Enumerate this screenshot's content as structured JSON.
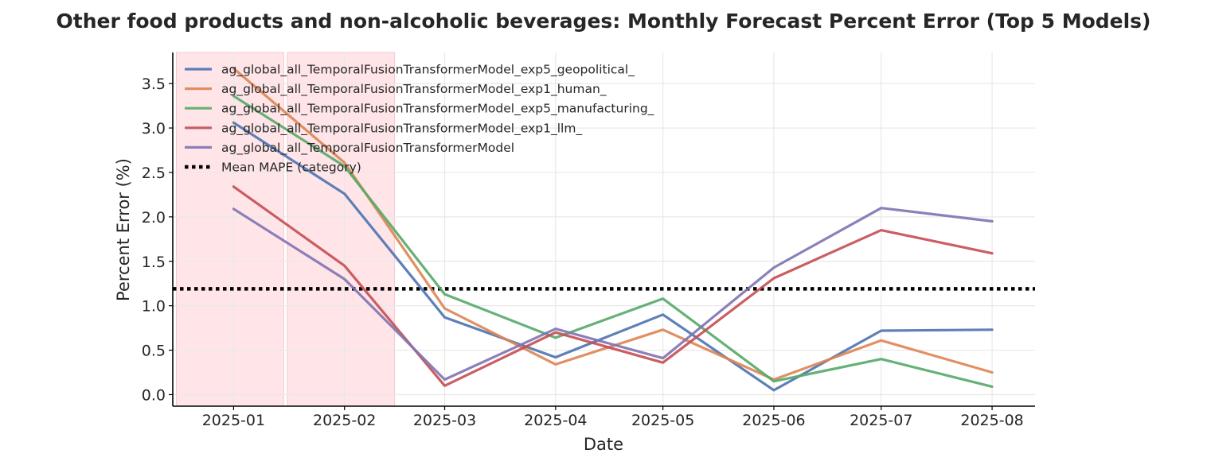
{
  "chart_data": {
    "type": "line",
    "title": "Other food products and non-alcoholic beverages: Monthly Forecast Percent Error (Top 5 Models)",
    "xlabel": "Date",
    "ylabel": "Percent Error (%)",
    "x": [
      "2025-01",
      "2025-02",
      "2025-03",
      "2025-04",
      "2025-05",
      "2025-06",
      "2025-07",
      "2025-08"
    ],
    "xlim": [
      "2024-12-15",
      "2025-08-13"
    ],
    "ylim": [
      -0.13,
      3.85
    ],
    "yticks": [
      0.0,
      0.5,
      1.0,
      1.5,
      2.0,
      2.5,
      3.0,
      3.5
    ],
    "ytick_labels": [
      "0.0",
      "0.5",
      "1.0",
      "1.5",
      "2.0",
      "2.5",
      "3.0",
      "3.5"
    ],
    "grid": true,
    "legend_position": "upper-left",
    "shaded_regions": [
      {
        "start": "2024-12-16",
        "end": "2025-01-15",
        "color": "#ffe5e8"
      },
      {
        "start": "2025-01-16",
        "end": "2025-02-15",
        "color": "#ffe5e8"
      }
    ],
    "series": [
      {
        "name": "ag_global_all_TemporalFusionTransformerModel_exp5_geopolitical_",
        "color": "#4c72b0",
        "values": [
          3.06,
          2.26,
          0.87,
          0.42,
          0.9,
          0.05,
          0.72,
          0.73
        ]
      },
      {
        "name": "ag_global_all_TemporalFusionTransformerModel_exp1_human_",
        "color": "#dd8452",
        "values": [
          3.67,
          2.61,
          0.97,
          0.34,
          0.73,
          0.17,
          0.61,
          0.25
        ]
      },
      {
        "name": "ag_global_all_TemporalFusionTransformerModel_exp5_manufacturing_",
        "color": "#55a868",
        "values": [
          3.36,
          2.57,
          1.13,
          0.64,
          1.08,
          0.15,
          0.4,
          0.09
        ]
      },
      {
        "name": "ag_global_all_TemporalFusionTransformerModel_exp1_llm_",
        "color": "#c44e52",
        "values": [
          2.34,
          1.45,
          0.1,
          0.7,
          0.36,
          1.31,
          1.85,
          1.59
        ]
      },
      {
        "name": "ag_global_all_TemporalFusionTransformerModel",
        "color": "#8172b3",
        "values": [
          2.09,
          1.3,
          0.17,
          0.74,
          0.41,
          1.43,
          2.1,
          1.95
        ]
      }
    ],
    "reference_line": {
      "name": "Mean MAPE (category)",
      "value": 1.19,
      "color": "#000000",
      "style": "dotted"
    }
  }
}
